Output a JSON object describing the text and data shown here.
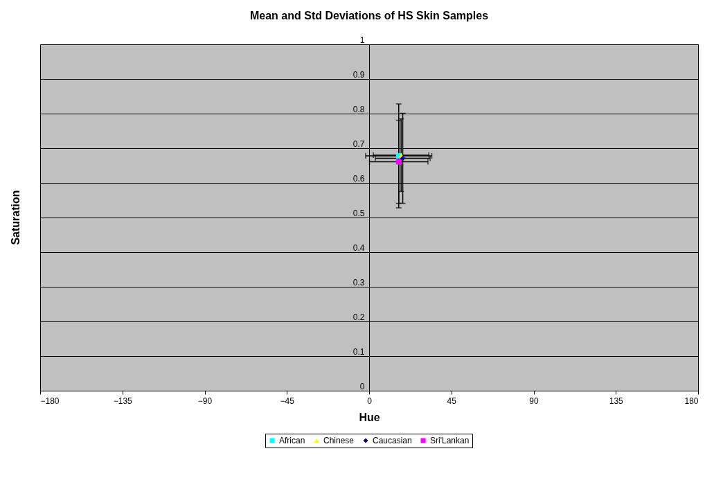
{
  "chart_data": {
    "type": "scatter",
    "title": "Mean and Std Deviations of HS Skin Samples",
    "xlabel": "Hue",
    "ylabel": "Saturation",
    "series": [
      {
        "name": "African",
        "color": "#00ffff",
        "marker": "square",
        "x": [
          16.2
        ],
        "values": [
          0.678
        ],
        "errors": [
          0.15
        ],
        "xerrors": [
          18.1
        ]
      },
      {
        "name": "Chinese",
        "color": "#ffff00",
        "marker": "triangle",
        "x": [
          17.5
        ],
        "values": [
          0.68
        ],
        "errors": [
          0.105
        ],
        "xerrors": [
          15.2
        ]
      },
      {
        "name": "Caucasian",
        "color": "#000080",
        "marker": "diamond",
        "x": [
          18.4
        ],
        "values": [
          0.671
        ],
        "errors": [
          0.13
        ],
        "xerrors": [
          15.0
        ]
      },
      {
        "name": "Sri'Lankan",
        "color": "#ff00ff",
        "marker": "square",
        "x": [
          16.2
        ],
        "values": [
          0.661
        ],
        "errors": [
          0.12
        ],
        "xerrors": [
          16.0
        ]
      }
    ],
    "xlim": [
      -180,
      180
    ],
    "xticks": [
      -180,
      -135,
      -90,
      -45,
      0,
      45,
      90,
      135,
      180
    ],
    "ylim": [
      0,
      1
    ],
    "yticks": [
      0,
      0.1,
      0.2,
      0.3,
      0.4,
      0.5,
      0.6,
      0.7,
      0.8,
      0.9,
      1
    ],
    "grid": "y",
    "legend": "bottom"
  }
}
